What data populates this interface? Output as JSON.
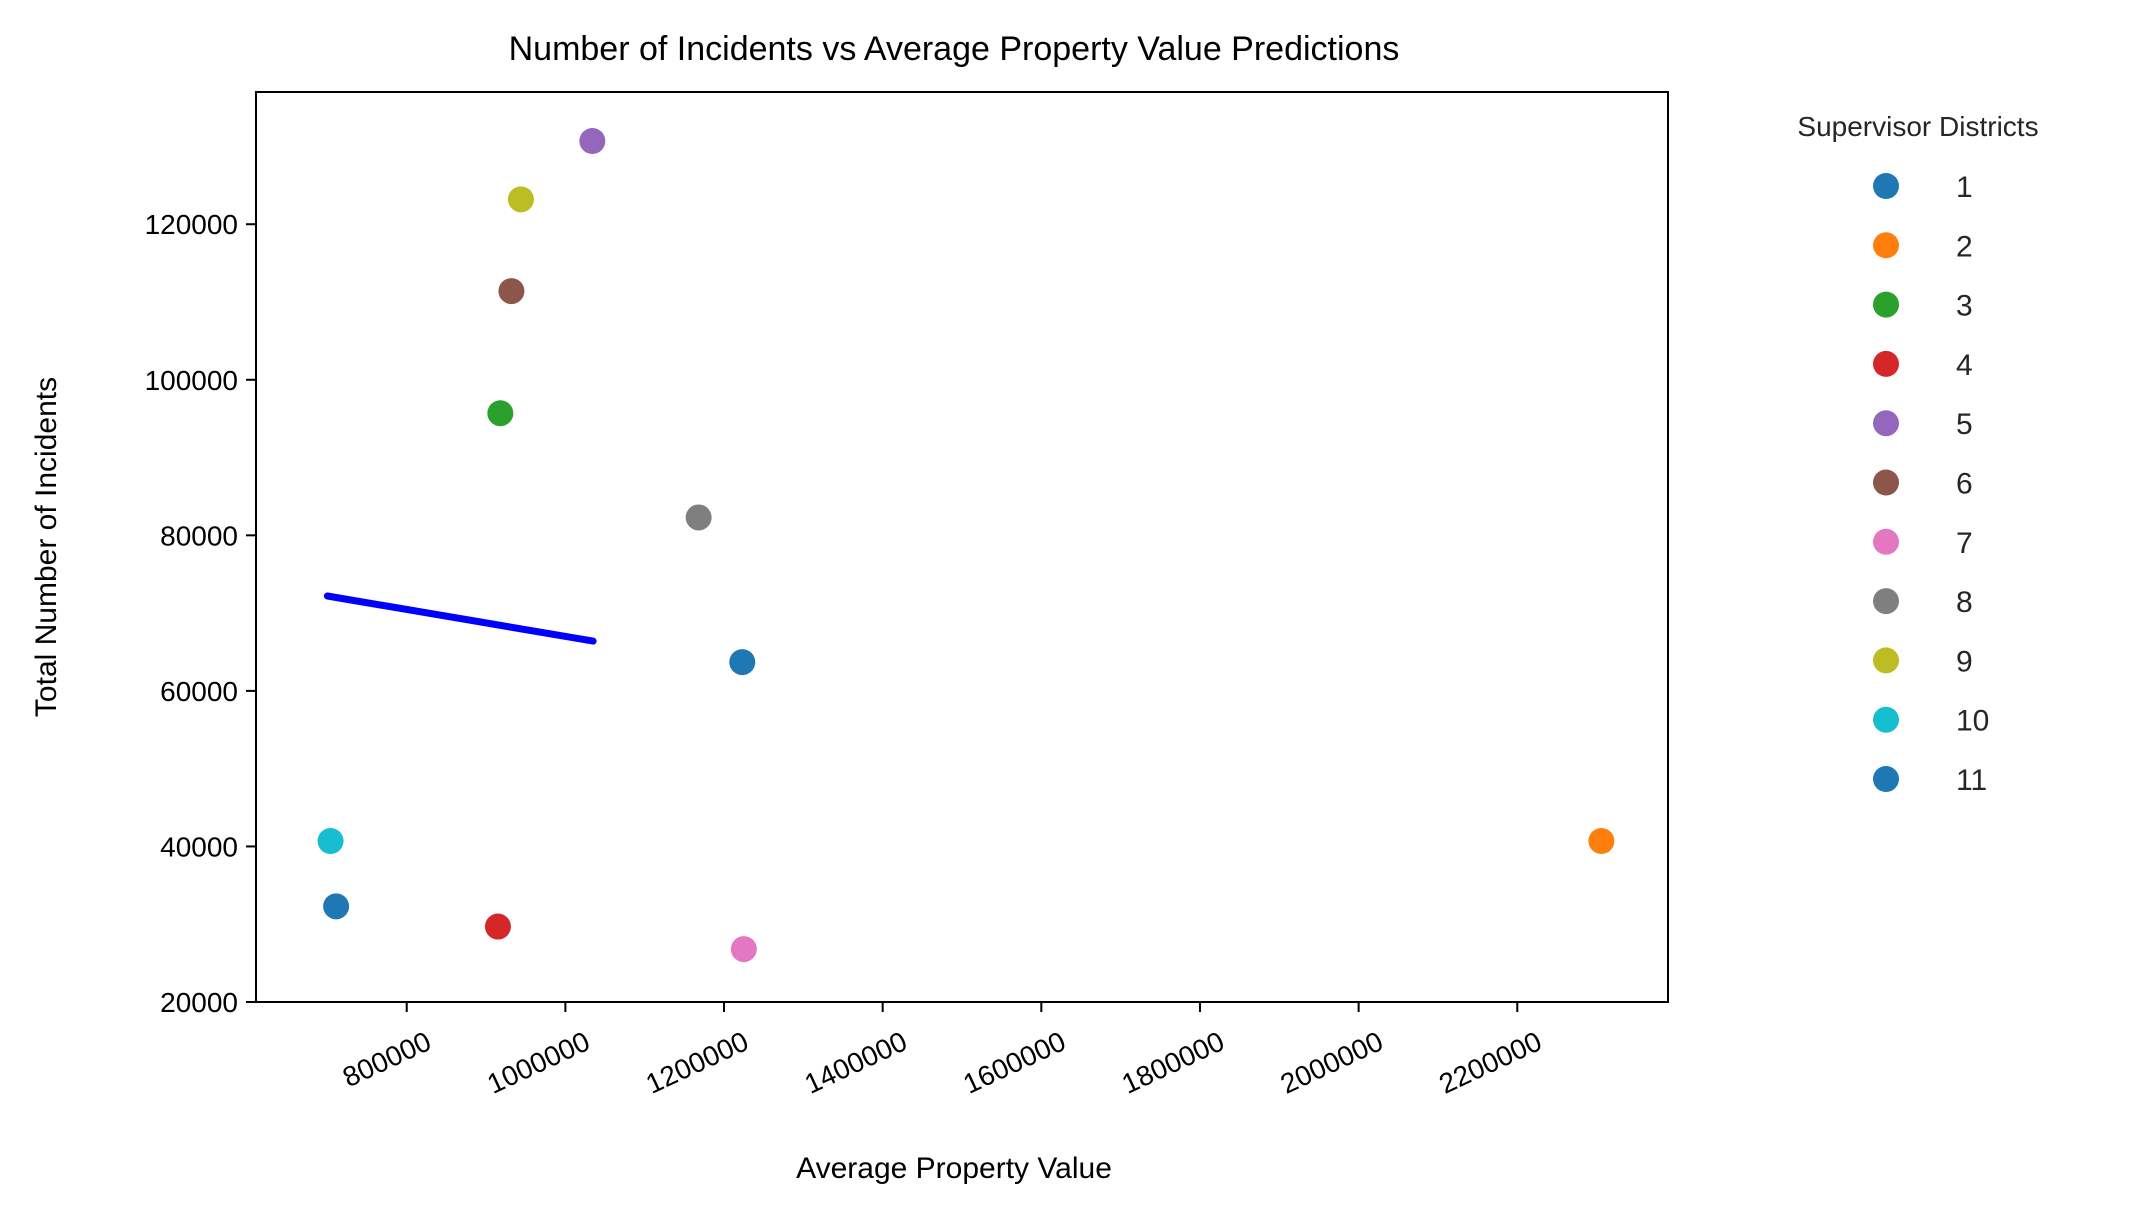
{
  "chart_data": {
    "type": "scatter",
    "title": "Number of Incidents vs Average Property Value Predictions",
    "xlabel": "Average Property Value",
    "ylabel": "Total Number of Incidents",
    "xlim": [
      610000,
      2390000
    ],
    "ylim": [
      20000,
      137000
    ],
    "x_ticks": [
      800000,
      1000000,
      1200000,
      1400000,
      1600000,
      1800000,
      2000000,
      2200000
    ],
    "x_tick_labels": [
      "800000",
      "1000000",
      "1200000",
      "1400000",
      "1600000",
      "1800000",
      "2000000",
      "2200000"
    ],
    "y_ticks": [
      20000,
      40000,
      60000,
      80000,
      100000,
      120000
    ],
    "y_tick_labels": [
      "20000",
      "40000",
      "60000",
      "80000",
      "100000",
      "120000"
    ],
    "grid": false,
    "legend": {
      "title": "Supervisor Districts",
      "placement": "outside-right"
    },
    "series": [
      {
        "name": "1",
        "color": "#1f77b4",
        "x": [
          1223000
        ],
        "y": [
          63700
        ]
      },
      {
        "name": "2",
        "color": "#ff7f0e",
        "x": [
          2306000
        ],
        "y": [
          40700
        ]
      },
      {
        "name": "3",
        "color": "#2ca02c",
        "x": [
          918000
        ],
        "y": [
          95700
        ]
      },
      {
        "name": "4",
        "color": "#d62728",
        "x": [
          915000
        ],
        "y": [
          29700
        ]
      },
      {
        "name": "5",
        "color": "#9467bd",
        "x": [
          1034000
        ],
        "y": [
          130700
        ]
      },
      {
        "name": "6",
        "color": "#8c564b",
        "x": [
          932000
        ],
        "y": [
          111400
        ]
      },
      {
        "name": "7",
        "color": "#e377c2",
        "x": [
          1225000
        ],
        "y": [
          26800
        ]
      },
      {
        "name": "8",
        "color": "#7f7f7f",
        "x": [
          1168000
        ],
        "y": [
          82300
        ]
      },
      {
        "name": "9",
        "color": "#bcbd22",
        "x": [
          944000
        ],
        "y": [
          123200
        ]
      },
      {
        "name": "10",
        "color": "#17becf",
        "x": [
          704000
        ],
        "y": [
          40700
        ]
      },
      {
        "name": "11",
        "color": "#1f77b4",
        "x": [
          711000
        ],
        "y": [
          32300
        ]
      }
    ],
    "regression_line": {
      "color": "#0000ff",
      "x": [
        700000,
        1035000
      ],
      "y": [
        72200,
        66400
      ]
    }
  }
}
